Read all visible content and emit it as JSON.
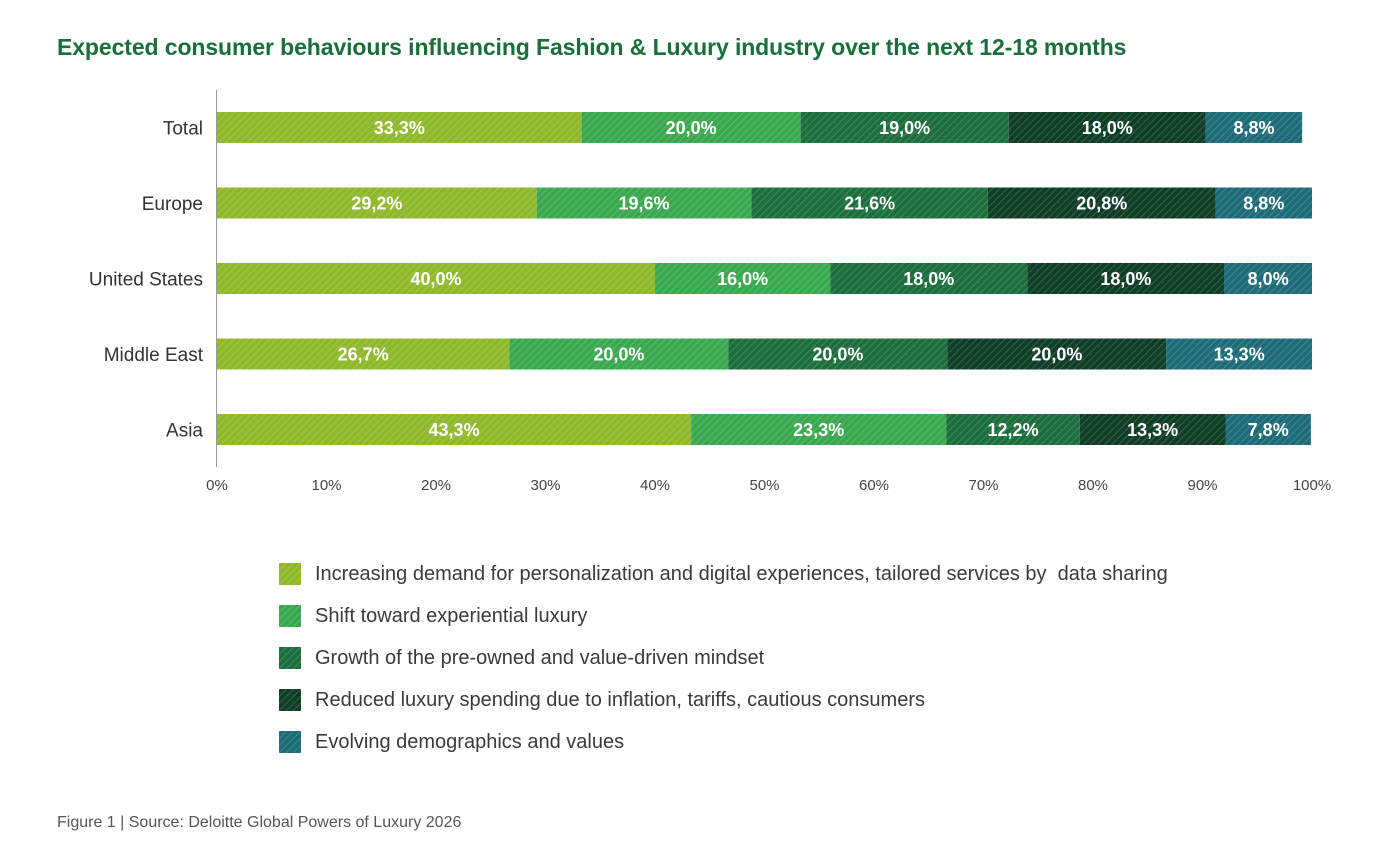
{
  "chart_data": {
    "type": "bar",
    "orientation": "horizontal",
    "stacked": true,
    "title": "Expected consumer behaviours influencing Fashion & Luxury industry over the next 12-18 months",
    "categories": [
      "Total",
      "Europe",
      "United States",
      "Middle East",
      "Asia"
    ],
    "xlim": [
      0,
      100
    ],
    "x_ticks": [
      "0%",
      "10%",
      "20%",
      "30%",
      "40%",
      "50%",
      "60%",
      "70%",
      "80%",
      "90%",
      "100%"
    ],
    "legend_position": "bottom",
    "series": [
      {
        "name": "Increasing demand for personalization and digital experiences, tailored services by  data sharing",
        "color": "#8fb82a",
        "values": [
          33.3,
          29.2,
          40.0,
          26.7,
          43.3
        ],
        "labels": [
          "33,3%",
          "29,2%",
          "40,0%",
          "26,7%",
          "43,3%"
        ]
      },
      {
        "name": "Shift toward experiential luxury",
        "color": "#3aa84f",
        "values": [
          20.0,
          19.6,
          16.0,
          20.0,
          23.3
        ],
        "labels": [
          "20,0%",
          "19,6%",
          "16,0%",
          "20,0%",
          "23,3%"
        ]
      },
      {
        "name": "Growth of the pre-owned and value-driven mindset",
        "color": "#1c6e3d",
        "values": [
          19.0,
          21.6,
          18.0,
          20.0,
          12.2
        ],
        "labels": [
          "19,0%",
          "21,6%",
          "18,0%",
          "20,0%",
          "12,2%"
        ]
      },
      {
        "name": "Reduced luxury spending due to inflation, tariffs, cautious consumers",
        "color": "#0f3d26",
        "values": [
          18.0,
          20.8,
          18.0,
          20.0,
          13.3
        ],
        "labels": [
          "18,0%",
          "20,8%",
          "18,0%",
          "20,0%",
          "13,3%"
        ]
      },
      {
        "name": "Evolving demographics and values",
        "color": "#1e6b78",
        "values": [
          8.8,
          8.8,
          8.0,
          13.3,
          7.8
        ],
        "labels": [
          "8,8%",
          "8,8%",
          "8,0%",
          "13,3%",
          "7,8%"
        ]
      }
    ]
  },
  "source": "Figure 1 | Source: Deloitte Global Powers of Luxury 2026"
}
